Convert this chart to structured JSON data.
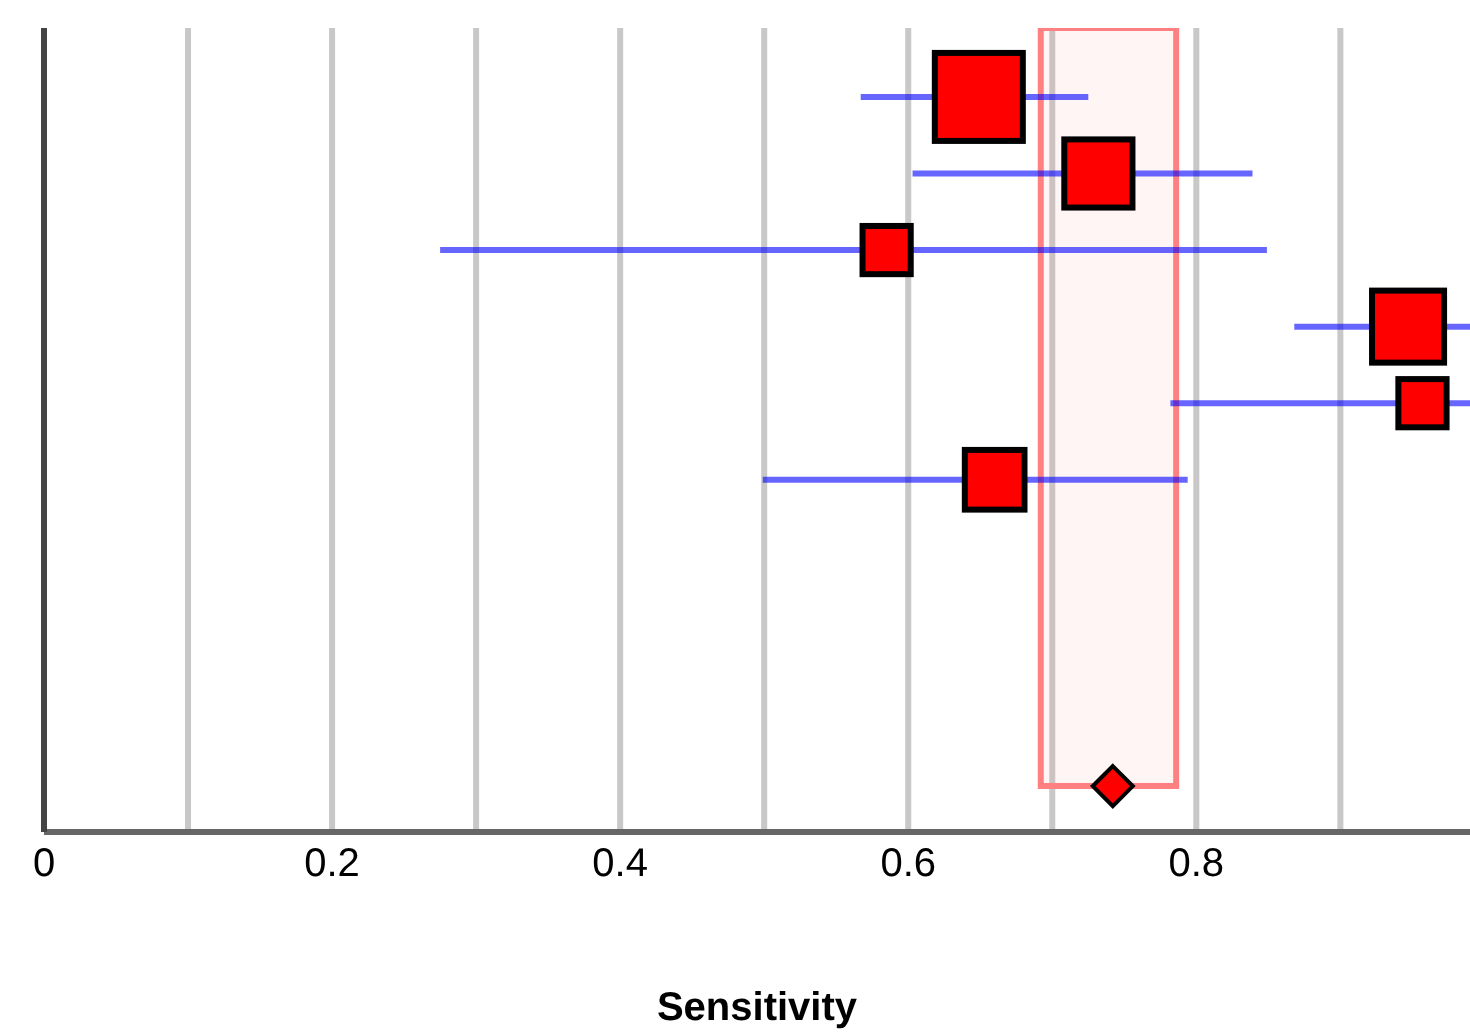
{
  "chart_data": {
    "type": "bubble",
    "xlabel": "Sensitivity",
    "categories": [
      null,
      null,
      null,
      null,
      null,
      null,
      null,
      null,
      null,
      null
    ],
    "orientation": "horizontal",
    "marker": "square",
    "series": [
      {
        "color": "#ff0000",
        "values": [
          0.649,
          0.732,
          0.585,
          0.947,
          0.957,
          0.66,
          null,
          null,
          null,
          null
        ],
        "sizes": [
          1,
          0.6,
          0.3,
          0.67,
          0.3,
          0.46,
          null,
          null,
          null,
          null
        ],
        "errors": [
          [
            0.567,
            0.725
          ],
          [
            0.603,
            0.839
          ],
          [
            0.275,
            0.849
          ],
          [
            0.868,
            0.99
          ],
          [
            0.782,
            0.99
          ],
          [
            0.499,
            0.794
          ],
          null,
          null,
          null,
          null
        ]
      },
      {
        "type": "scatter",
        "marker": "diamond",
        "color": "#ff0000",
        "values": [
          null,
          null,
          null,
          null,
          null,
          null,
          null,
          null,
          null,
          0.742
        ]
      }
    ],
    "bands": [
      {
        "axis": "x",
        "from": 0.692,
        "to": 0.786,
        "color": "#ff8080"
      }
    ],
    "xlim": [
      0,
      0.99
    ],
    "xticks": [
      0,
      {
        "value": 0.1,
        "label": null
      },
      0.2,
      {
        "value": 0.3,
        "label": null
      },
      0.4,
      {
        "value": 0.5,
        "label": null
      },
      0.6,
      {
        "value": 0.7,
        "label": null
      },
      0.8,
      {
        "value": 0.9,
        "label": null
      }
    ],
    "grid": "x"
  }
}
